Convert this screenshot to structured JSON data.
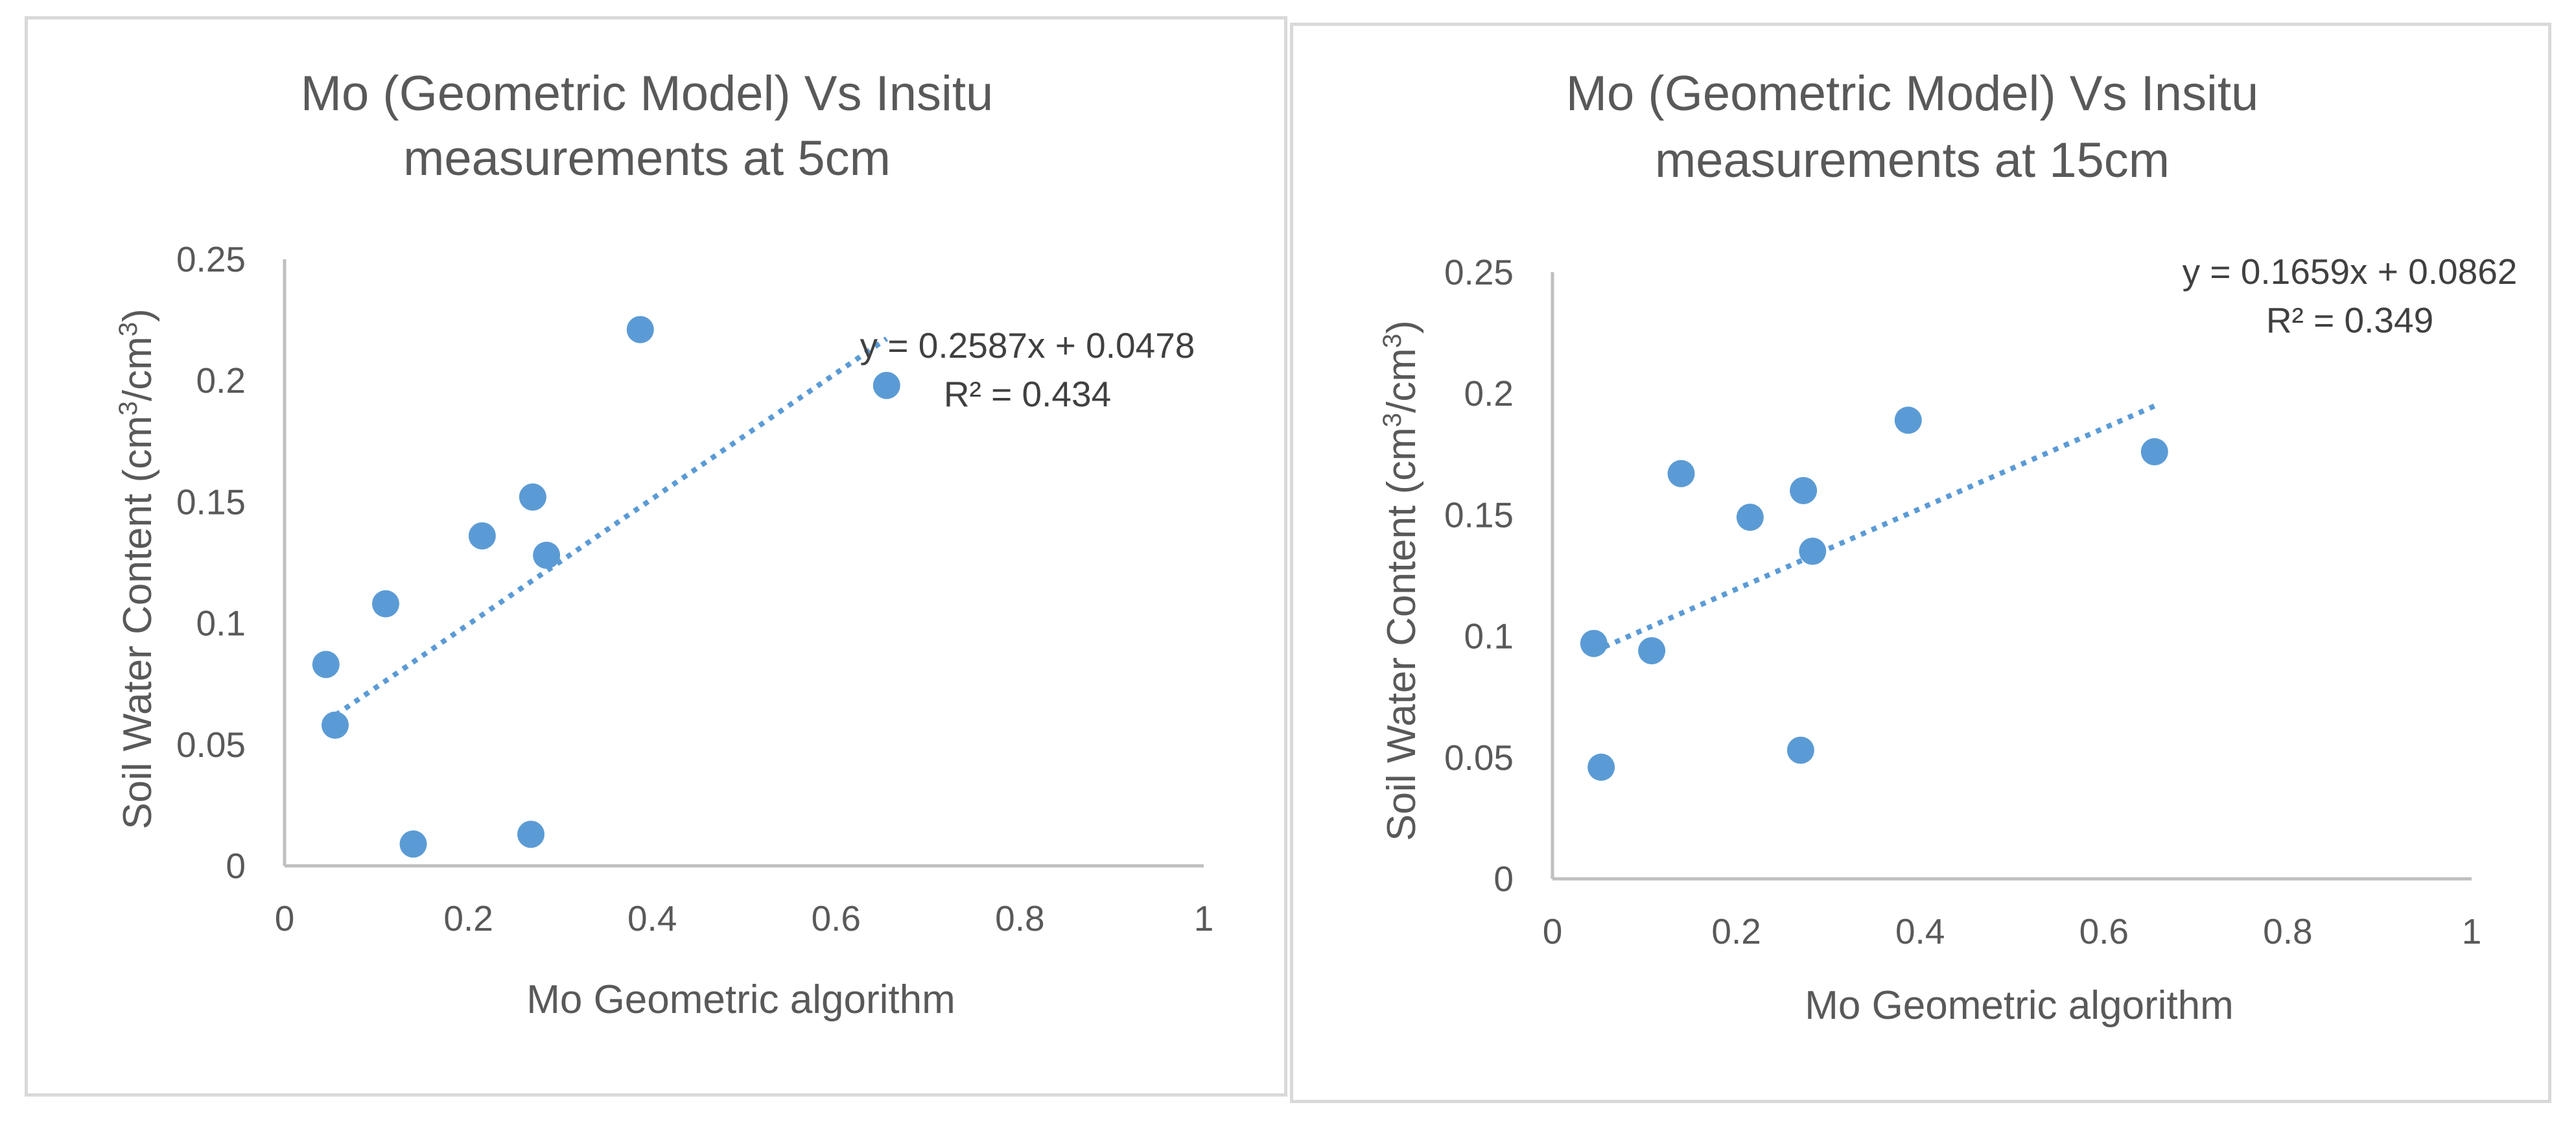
{
  "chart_data": [
    {
      "type": "scatter",
      "title_lines": [
        "Mo (Geometric Model) Vs Insitu",
        "measurements at 5cm"
      ],
      "xlabel": "Mo Geometric algorithm",
      "ylabel": "Soil Water Content (cm³/cm³)",
      "xlim": [
        0,
        1
      ],
      "ylim": [
        0,
        0.25
      ],
      "xticks": [
        "0",
        "0.2",
        "0.4",
        "0.6",
        "0.8",
        "1"
      ],
      "yticks": [
        "0",
        "0.05",
        "0.1",
        "0.15",
        "0.2",
        "0.25"
      ],
      "points": [
        {
          "x": 0.045,
          "y": 0.083
        },
        {
          "x": 0.055,
          "y": 0.058
        },
        {
          "x": 0.11,
          "y": 0.108
        },
        {
          "x": 0.14,
          "y": 0.009
        },
        {
          "x": 0.215,
          "y": 0.136
        },
        {
          "x": 0.27,
          "y": 0.152
        },
        {
          "x": 0.268,
          "y": 0.013
        },
        {
          "x": 0.285,
          "y": 0.128
        },
        {
          "x": 0.387,
          "y": 0.221
        },
        {
          "x": 0.655,
          "y": 0.198
        }
      ],
      "trendline": {
        "type": "linear",
        "slope": 0.2587,
        "intercept": 0.0478,
        "x_range": [
          0.045,
          0.655
        ]
      },
      "equation_label": "y = 0.2587x + 0.0478",
      "r2_label": "R² = 0.434"
    },
    {
      "type": "scatter",
      "title_lines": [
        "Mo (Geometric Model) Vs Insitu",
        "measurements at 15cm"
      ],
      "xlabel": "Mo Geometric algorithm",
      "ylabel": "Soil Water Content (cm³/cm³)",
      "xlim": [
        0,
        1
      ],
      "ylim": [
        0,
        0.25
      ],
      "xticks": [
        "0",
        "0.2",
        "0.4",
        "0.6",
        "0.8",
        "1"
      ],
      "yticks": [
        "0",
        "0.05",
        "0.1",
        "0.15",
        "0.2",
        "0.25"
      ],
      "points": [
        {
          "x": 0.045,
          "y": 0.097
        },
        {
          "x": 0.053,
          "y": 0.046
        },
        {
          "x": 0.108,
          "y": 0.094
        },
        {
          "x": 0.14,
          "y": 0.167
        },
        {
          "x": 0.215,
          "y": 0.149
        },
        {
          "x": 0.273,
          "y": 0.16
        },
        {
          "x": 0.27,
          "y": 0.053
        },
        {
          "x": 0.283,
          "y": 0.135
        },
        {
          "x": 0.387,
          "y": 0.189
        },
        {
          "x": 0.655,
          "y": 0.176
        }
      ],
      "trendline": {
        "type": "linear",
        "slope": 0.1659,
        "intercept": 0.0862,
        "x_range": [
          0.045,
          0.655
        ]
      },
      "equation_label": "y = 0.1659x + 0.0862",
      "r2_label": "R² = 0.349"
    }
  ]
}
